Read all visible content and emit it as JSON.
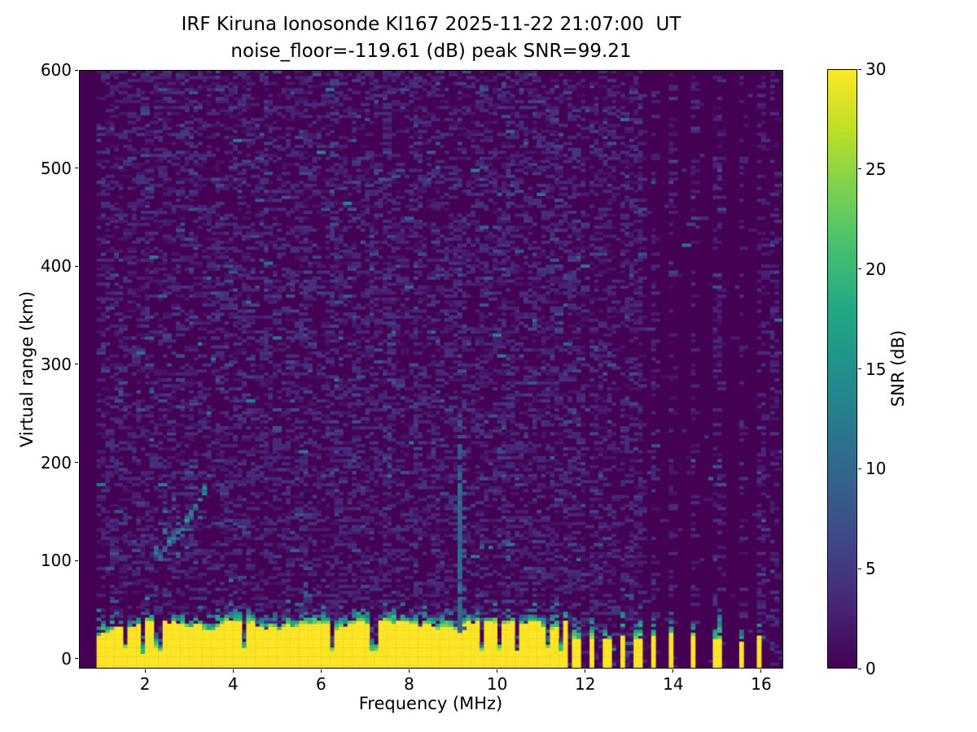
{
  "figure": {
    "title_line1": "IRF Kiruna Ionosonde KI167 2025-11-22 21:07:00  UT",
    "title_line2": "noise_floor=-119.61 (dB) peak SNR=99.21"
  },
  "chart_data": {
    "type": "heatmap",
    "title": "IRF Kiruna Ionosonde KI167 2025-11-22 21:07:00  UT",
    "subtitle": "noise_floor=-119.61 (dB) peak SNR=99.21",
    "xlabel": "Frequency (MHz)",
    "ylabel": "Virtual range (km)",
    "xlim": [
      0.5,
      16.5
    ],
    "ylim": [
      -10,
      600
    ],
    "xticks": [
      2,
      4,
      6,
      8,
      10,
      12,
      14,
      16
    ],
    "yticks": [
      0,
      100,
      200,
      300,
      400,
      500,
      600
    ],
    "grid": false,
    "legend_position": "none",
    "colorbar": {
      "label": "SNR (dB)",
      "vmin": 0,
      "vmax": 30,
      "ticks": [
        0,
        5,
        10,
        15,
        20,
        25,
        30
      ],
      "colormap": "viridis",
      "stops": [
        "#440154",
        "#482475",
        "#414487",
        "#355f8d",
        "#2a788e",
        "#21918c",
        "#22a884",
        "#44bf70",
        "#7ad151",
        "#bddf26",
        "#fde725"
      ]
    },
    "content": {
      "sweep_start_mhz": 0.9,
      "background_noise": {
        "snr_db_range": [
          1,
          5
        ],
        "coverage": 0.45,
        "bright_speck_db_range": [
          8,
          14
        ]
      },
      "ground_clutter_band": {
        "freq_range_mhz": [
          0.9,
          11.63
        ],
        "saturated_top_km_mean": 24,
        "saturated_top_km_range": [
          14,
          36
        ],
        "fringe_thickness_km_range": [
          8,
          18
        ],
        "notch_freqs_mhz": [
          1.55,
          1.95,
          2.3,
          4.25,
          6.25,
          7.2,
          9.65,
          10.05,
          10.45,
          11.15,
          11.45
        ]
      },
      "enhanced_noise_columns_mhz": [
        2.05,
        2.45,
        3.05,
        3.65,
        4.3,
        4.75,
        5.25,
        5.6,
        6.3,
        6.75,
        7.05,
        7.5,
        8.15,
        8.6,
        9.6,
        10.2,
        10.85,
        11.3
      ],
      "interference_strips": {
        "freq_range_mhz": [
          11.63,
          16.5
        ],
        "strip_freqs_mhz": [
          11.8,
          12.15,
          12.5,
          12.85,
          13.2,
          13.55,
          13.95,
          14.45,
          15.0,
          15.55,
          15.97
        ],
        "strip_width_mhz": 0.16,
        "yellow_top_km_range": [
          14,
          24
        ],
        "noise_column_coverage": 0.33,
        "extra_noise_columns_mhz": [
          11.65,
          11.93,
          12.3,
          12.65,
          13.0,
          16.3
        ]
      },
      "echo_trace": {
        "points_mhz_km": [
          [
            2.25,
            103
          ],
          [
            2.5,
            115
          ],
          [
            2.75,
            128
          ],
          [
            3.0,
            143
          ],
          [
            3.15,
            155
          ],
          [
            3.3,
            168
          ],
          [
            3.42,
            182
          ]
        ],
        "snr_db_range": [
          9,
          18
        ]
      },
      "vertical_streak": {
        "freq_mhz": 9.16,
        "strong_top_km": 190,
        "medium_top_km": 245,
        "faint_top_km": 555,
        "snr_db": 9.5
      }
    }
  },
  "colors": {
    "background": "#ffffff",
    "spine": "#000000",
    "text": "#000000"
  }
}
